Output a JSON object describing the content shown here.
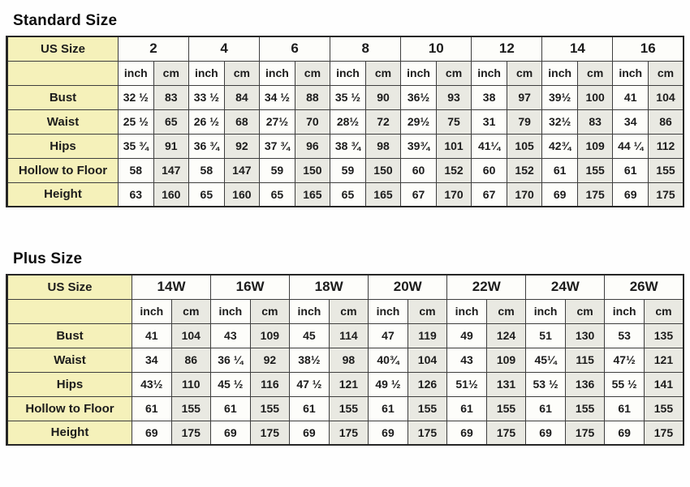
{
  "colors": {
    "page-bg": "#fefefe",
    "label-bg": "#f5f1ba",
    "inch-bg": "#fdfdfa",
    "cm-bg": "#e9e9e2",
    "grid": "#3e3e3e",
    "frame": "#262626",
    "text": "#1c1c1c"
  },
  "standard": {
    "title": "Standard Size",
    "corner_label": "US Size",
    "unit_labels": [
      "inch",
      "cm"
    ],
    "sizes": [
      "2",
      "4",
      "6",
      "8",
      "10",
      "12",
      "14",
      "16"
    ],
    "rows": [
      {
        "label": "Bust",
        "values": [
          [
            "32 ½",
            "83"
          ],
          [
            "33 ½",
            "84"
          ],
          [
            "34 ½",
            "88"
          ],
          [
            "35 ½",
            "90"
          ],
          [
            "36½",
            "93"
          ],
          [
            "38",
            "97"
          ],
          [
            "39½",
            "100"
          ],
          [
            "41",
            "104"
          ]
        ]
      },
      {
        "label": "Waist",
        "values": [
          [
            "25 ½",
            "65"
          ],
          [
            "26 ½",
            "68"
          ],
          [
            "27½",
            "70"
          ],
          [
            "28½",
            "72"
          ],
          [
            "29½",
            "75"
          ],
          [
            "31",
            "79"
          ],
          [
            "32½",
            "83"
          ],
          [
            "34",
            "86"
          ]
        ]
      },
      {
        "label": "Hips",
        "values": [
          [
            "35 ¾",
            "91"
          ],
          [
            "36 ¾",
            "92"
          ],
          [
            "37 ¾",
            "96"
          ],
          [
            "38 ¾",
            "98"
          ],
          [
            "39¾",
            "101"
          ],
          [
            "41¼",
            "105"
          ],
          [
            "42¾",
            "109"
          ],
          [
            "44 ¼",
            "112"
          ]
        ]
      },
      {
        "label": "Hollow to Floor",
        "values": [
          [
            "58",
            "147"
          ],
          [
            "58",
            "147"
          ],
          [
            "59",
            "150"
          ],
          [
            "59",
            "150"
          ],
          [
            "60",
            "152"
          ],
          [
            "60",
            "152"
          ],
          [
            "61",
            "155"
          ],
          [
            "61",
            "155"
          ]
        ]
      },
      {
        "label": "Height",
        "values": [
          [
            "63",
            "160"
          ],
          [
            "65",
            "160"
          ],
          [
            "65",
            "165"
          ],
          [
            "65",
            "165"
          ],
          [
            "67",
            "170"
          ],
          [
            "67",
            "170"
          ],
          [
            "69",
            "175"
          ],
          [
            "69",
            "175"
          ]
        ]
      }
    ]
  },
  "plus": {
    "title": "Plus Size",
    "corner_label": "US Size",
    "unit_labels": [
      "inch",
      "cm"
    ],
    "sizes": [
      "14W",
      "16W",
      "18W",
      "20W",
      "22W",
      "24W",
      "26W"
    ],
    "rows": [
      {
        "label": "Bust",
        "values": [
          [
            "41",
            "104"
          ],
          [
            "43",
            "109"
          ],
          [
            "45",
            "114"
          ],
          [
            "47",
            "119"
          ],
          [
            "49",
            "124"
          ],
          [
            "51",
            "130"
          ],
          [
            "53",
            "135"
          ]
        ]
      },
      {
        "label": "Waist",
        "values": [
          [
            "34",
            "86"
          ],
          [
            "36 ¼",
            "92"
          ],
          [
            "38½",
            "98"
          ],
          [
            "40¾",
            "104"
          ],
          [
            "43",
            "109"
          ],
          [
            "45¼",
            "115"
          ],
          [
            "47½",
            "121"
          ]
        ]
      },
      {
        "label": "Hips",
        "values": [
          [
            "43½",
            "110"
          ],
          [
            "45 ½",
            "116"
          ],
          [
            "47 ½",
            "121"
          ],
          [
            "49 ½",
            "126"
          ],
          [
            "51½",
            "131"
          ],
          [
            "53 ½",
            "136"
          ],
          [
            "55 ½",
            "141"
          ]
        ]
      },
      {
        "label": "Hollow to Floor",
        "values": [
          [
            "61",
            "155"
          ],
          [
            "61",
            "155"
          ],
          [
            "61",
            "155"
          ],
          [
            "61",
            "155"
          ],
          [
            "61",
            "155"
          ],
          [
            "61",
            "155"
          ],
          [
            "61",
            "155"
          ]
        ]
      },
      {
        "label": "Height",
        "values": [
          [
            "69",
            "175"
          ],
          [
            "69",
            "175"
          ],
          [
            "69",
            "175"
          ],
          [
            "69",
            "175"
          ],
          [
            "69",
            "175"
          ],
          [
            "69",
            "175"
          ],
          [
            "69",
            "175"
          ]
        ]
      }
    ]
  }
}
